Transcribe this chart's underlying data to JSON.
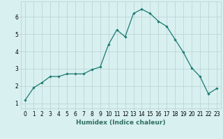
{
  "x": [
    0,
    1,
    2,
    3,
    4,
    5,
    6,
    7,
    8,
    9,
    10,
    11,
    12,
    13,
    14,
    15,
    16,
    17,
    18,
    19,
    20,
    21,
    22,
    23
  ],
  "y": [
    1.2,
    1.9,
    2.2,
    2.55,
    2.55,
    2.7,
    2.7,
    2.7,
    2.95,
    3.1,
    4.4,
    5.25,
    4.85,
    6.2,
    6.45,
    6.2,
    5.75,
    5.45,
    4.7,
    3.95,
    3.05,
    2.55,
    1.55,
    1.85
  ],
  "line_color": "#1a7a6e",
  "marker": "D",
  "markersize": 1.8,
  "linewidth": 0.9,
  "bg_color": "#d8f0f0",
  "grid_color": "#b8d0d0",
  "xlabel": "Humidex (Indice chaleur)",
  "xlabel_fontsize": 6.5,
  "yticks": [
    1,
    2,
    3,
    4,
    5,
    6
  ],
  "xticks": [
    0,
    1,
    2,
    3,
    4,
    5,
    6,
    7,
    8,
    9,
    10,
    11,
    12,
    13,
    14,
    15,
    16,
    17,
    18,
    19,
    20,
    21,
    22,
    23
  ],
  "xlim": [
    -0.5,
    23.5
  ],
  "ylim": [
    0.7,
    6.9
  ],
  "tick_fontsize": 5.5,
  "label_color": "#2e6e60"
}
